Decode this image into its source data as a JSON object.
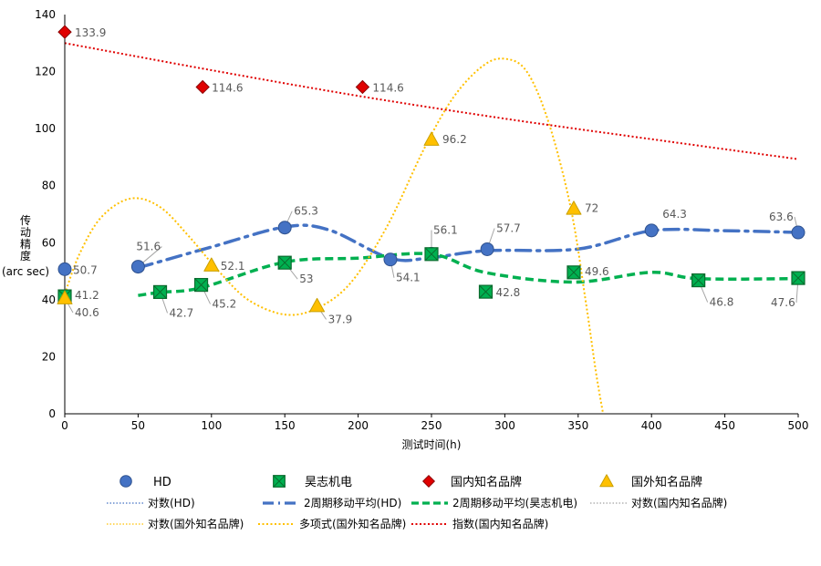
{
  "chart_data": {
    "type": "scatter",
    "title": "",
    "xlabel": "测试时间(h)",
    "ylabel_lines": [
      "传",
      "动",
      "精",
      "度",
      "(arc sec)"
    ],
    "xlim": [
      0,
      500
    ],
    "ylim": [
      0,
      140
    ],
    "x_ticks": [
      0,
      50,
      100,
      150,
      200,
      250,
      300,
      350,
      400,
      450,
      500
    ],
    "y_ticks": [
      0,
      20,
      40,
      60,
      80,
      100,
      120,
      140
    ],
    "colors": {
      "hd": "#4472C4",
      "haozhi": "#00B050",
      "domestic": "#E00000",
      "foreign": "#FFC000",
      "label": "#595959",
      "axis": "#000000",
      "leader": "#A6A6A6"
    },
    "series": [
      {
        "key": "hd",
        "name": "HD",
        "marker": "circle",
        "points": [
          [
            0,
            50.7
          ],
          [
            50,
            51.6
          ],
          [
            150,
            65.3
          ],
          [
            222,
            54.1
          ],
          [
            250,
            56.1
          ],
          [
            288,
            57.7
          ],
          [
            400,
            64.3
          ],
          [
            500,
            63.6
          ]
        ]
      },
      {
        "key": "haozhi",
        "name": "昊志机电",
        "marker": "square",
        "points": [
          [
            0,
            41.2
          ],
          [
            65,
            42.7
          ],
          [
            93,
            45.2
          ],
          [
            150,
            53
          ],
          [
            250,
            56
          ],
          [
            287,
            42.8
          ],
          [
            347,
            49.6
          ],
          [
            432,
            46.8
          ],
          [
            500,
            47.6
          ]
        ]
      },
      {
        "key": "domestic",
        "name": "国内知名品牌",
        "marker": "diamond",
        "points": [
          [
            0,
            133.9
          ],
          [
            94,
            114.6
          ],
          [
            203,
            114.6
          ]
        ]
      },
      {
        "key": "foreign",
        "name": "国外知名品牌",
        "marker": "triangle",
        "points": [
          [
            0,
            40.6
          ],
          [
            100,
            52.1
          ],
          [
            172,
            37.9
          ],
          [
            250,
            96.2
          ],
          [
            347,
            72
          ]
        ]
      }
    ],
    "data_labels": [
      {
        "text": "50.7",
        "x": 0,
        "y": 50.7,
        "series": "hd"
      },
      {
        "text": "51.6",
        "x": 50,
        "y": 51.6,
        "series": "hd"
      },
      {
        "text": "65.3",
        "x": 150,
        "y": 65.3,
        "series": "hd"
      },
      {
        "text": "54.1",
        "x": 222,
        "y": 54.1,
        "series": "hd"
      },
      {
        "text": "56.1",
        "x": 250,
        "y": 56.1,
        "series": "hd"
      },
      {
        "text": "57.7",
        "x": 288,
        "y": 57.7,
        "series": "hd"
      },
      {
        "text": "64.3",
        "x": 400,
        "y": 64.3,
        "series": "hd"
      },
      {
        "text": "63.6",
        "x": 500,
        "y": 63.6,
        "series": "hd"
      },
      {
        "text": "41.2",
        "x": 0,
        "y": 41.2,
        "series": "haozhi"
      },
      {
        "text": "42.7",
        "x": 65,
        "y": 42.7,
        "series": "haozhi"
      },
      {
        "text": "45.2",
        "x": 93,
        "y": 45.2,
        "series": "haozhi"
      },
      {
        "text": "53",
        "x": 150,
        "y": 53,
        "series": "haozhi"
      },
      {
        "text": "42.8",
        "x": 287,
        "y": 42.8,
        "series": "haozhi"
      },
      {
        "text": "49.6",
        "x": 347,
        "y": 49.6,
        "series": "haozhi"
      },
      {
        "text": "46.8",
        "x": 432,
        "y": 46.8,
        "series": "haozhi"
      },
      {
        "text": "47.6",
        "x": 500,
        "y": 47.6,
        "series": "haozhi"
      },
      {
        "text": "133.9",
        "x": 0,
        "y": 133.9,
        "series": "domestic"
      },
      {
        "text": "114.6",
        "x": 94,
        "y": 114.6,
        "series": "domestic"
      },
      {
        "text": "114.6",
        "x": 203,
        "y": 114.6,
        "series": "domestic"
      },
      {
        "text": "40.6",
        "x": 0,
        "y": 40.6,
        "series": "foreign"
      },
      {
        "text": "52.1",
        "x": 100,
        "y": 52.1,
        "series": "foreign"
      },
      {
        "text": "37.9",
        "x": 172,
        "y": 37.9,
        "series": "foreign"
      },
      {
        "text": "96.2",
        "x": 250,
        "y": 96.2,
        "series": "foreign"
      },
      {
        "text": "72",
        "x": 347,
        "y": 72,
        "series": "foreign"
      }
    ],
    "trendlines": [
      {
        "key": "ma_hd",
        "type": "moving_average",
        "name": "2周期移动平均(HD)",
        "points": [
          [
            50,
            51.2
          ],
          [
            100,
            58.5
          ],
          [
            150,
            65.5
          ],
          [
            180,
            64.5
          ],
          [
            222,
            54.5
          ],
          [
            250,
            54.8
          ],
          [
            288,
            57.2
          ],
          [
            350,
            57.8
          ],
          [
            400,
            64.2
          ],
          [
            450,
            64.2
          ],
          [
            500,
            63.6
          ]
        ]
      },
      {
        "key": "ma_haozhi",
        "type": "moving_average",
        "name": "2周期移动平均(昊志机电)",
        "points": [
          [
            50,
            41.5
          ],
          [
            65,
            42.6
          ],
          [
            93,
            44.2
          ],
          [
            150,
            53.2
          ],
          [
            200,
            54.6
          ],
          [
            250,
            56
          ],
          [
            287,
            49.5
          ],
          [
            347,
            46.2
          ],
          [
            400,
            49.6
          ],
          [
            432,
            47.4
          ],
          [
            500,
            47.4
          ]
        ]
      },
      {
        "key": "exp_domestic",
        "type": "exponential",
        "name": "指数(国内知名品牌)",
        "points": [
          [
            0,
            130
          ],
          [
            100,
            120.5
          ],
          [
            200,
            111.5
          ],
          [
            300,
            103.5
          ],
          [
            400,
            96.3
          ],
          [
            500,
            89.3
          ]
        ]
      },
      {
        "key": "poly_foreign",
        "type": "polynomial",
        "name": "多项式(国外知名品牌)",
        "points": [
          [
            0,
            42
          ],
          [
            10,
            56
          ],
          [
            25,
            69
          ],
          [
            45,
            75.5
          ],
          [
            65,
            72.5
          ],
          [
            85,
            62
          ],
          [
            105,
            50
          ],
          [
            125,
            40
          ],
          [
            150,
            34.8
          ],
          [
            172,
            37
          ],
          [
            195,
            46
          ],
          [
            220,
            66
          ],
          [
            245,
            93
          ],
          [
            265,
            111
          ],
          [
            285,
            122
          ],
          [
            300,
            124.5
          ],
          [
            315,
            120
          ],
          [
            330,
            102
          ],
          [
            345,
            72
          ],
          [
            355,
            40
          ],
          [
            362,
            15
          ],
          [
            367,
            0
          ]
        ]
      }
    ],
    "legend_position": "bottom",
    "legend": [
      {
        "key": "hd",
        "label": "HD",
        "kind": "marker",
        "marker": "circle"
      },
      {
        "key": "haozhi",
        "label": "昊志机电",
        "kind": "marker",
        "marker": "square"
      },
      {
        "key": "domestic",
        "label": "国内知名品牌",
        "kind": "marker",
        "marker": "diamond"
      },
      {
        "key": "foreign",
        "label": "国外知名品牌",
        "kind": "marker",
        "marker": "triangle"
      },
      {
        "key": "log_hd",
        "label": "对数(HD)",
        "kind": "line",
        "style": "dot_thin",
        "color": "#4472C4"
      },
      {
        "key": "ma_hd",
        "label": "2周期移动平均(HD)",
        "kind": "line",
        "style": "dashdot",
        "color": "#4472C4"
      },
      {
        "key": "ma_haozhi",
        "label": "2周期移动平均(昊志机电)",
        "kind": "line",
        "style": "dash",
        "color": "#00B050"
      },
      {
        "key": "log_domestic",
        "label": "对数(国内知名品牌)",
        "kind": "line",
        "style": "dot_thin",
        "color": "#A5A5A5"
      },
      {
        "key": "log_foreign",
        "label": "对数(国外知名品牌)",
        "kind": "line",
        "style": "dot_thin",
        "color": "#FFC000"
      },
      {
        "key": "poly_foreign",
        "label": "多项式(国外知名品牌)",
        "kind": "line",
        "style": "dot",
        "color": "#FFC000"
      },
      {
        "key": "exp_domestic",
        "label": "指数(国内知名品牌)",
        "kind": "line",
        "style": "dot",
        "color": "#E00000"
      }
    ]
  }
}
